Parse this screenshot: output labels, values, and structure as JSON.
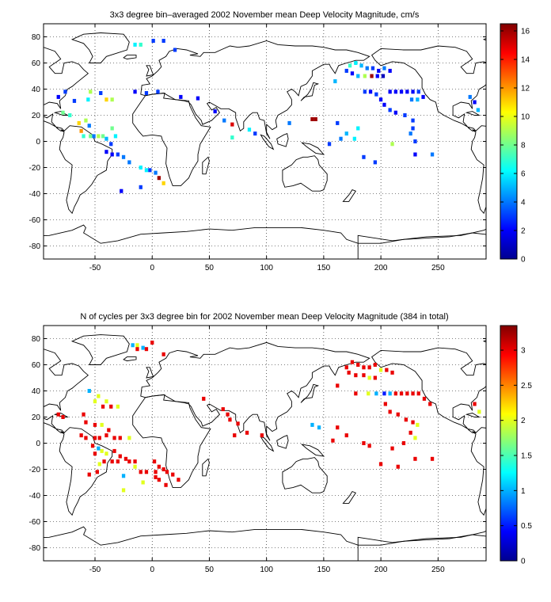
{
  "chart_data": [
    {
      "type": "heatmap",
      "title": "3x3 degree bin–averaged 2002 November mean Deep Velocity Magnitude, cm/s",
      "xlabel": "",
      "ylabel": "",
      "xlim": [
        -95,
        292
      ],
      "ylim": [
        -90,
        90
      ],
      "xticks": [
        -50,
        0,
        50,
        100,
        150,
        200,
        250
      ],
      "yticks": [
        -80,
        -60,
        -40,
        -20,
        0,
        20,
        40,
        60,
        80
      ],
      "grid": true,
      "colorbar": {
        "min": 0,
        "max": 16.5,
        "ticks": [
          0,
          2,
          4,
          6,
          8,
          10,
          12,
          14,
          16
        ]
      },
      "cells": [
        [
          1,
          77,
          3
        ],
        [
          10,
          77,
          3
        ],
        [
          -15,
          74,
          6
        ],
        [
          -10,
          74,
          7
        ],
        [
          20,
          70,
          3
        ],
        [
          -82,
          34,
          2
        ],
        [
          -76,
          38,
          3
        ],
        [
          -68,
          31,
          3
        ],
        [
          -54,
          38,
          9
        ],
        [
          -56,
          32,
          6
        ],
        [
          -45,
          37,
          3
        ],
        [
          -40,
          32,
          11
        ],
        [
          -35,
          32,
          9
        ],
        [
          -15,
          38,
          2
        ],
        [
          -5,
          37,
          3
        ],
        [
          5,
          38,
          3
        ],
        [
          25,
          34,
          2
        ],
        [
          40,
          33,
          2
        ],
        [
          -78,
          22,
          8
        ],
        [
          -72,
          20,
          7
        ],
        [
          -64,
          14,
          11
        ],
        [
          -58,
          16,
          9
        ],
        [
          -55,
          12,
          4
        ],
        [
          -62,
          8,
          12
        ],
        [
          -60,
          4,
          7
        ],
        [
          -54,
          4,
          8
        ],
        [
          -51,
          4,
          4
        ],
        [
          -47,
          4,
          9
        ],
        [
          -43,
          4,
          8
        ],
        [
          -40,
          2,
          5
        ],
        [
          -35,
          10,
          8
        ],
        [
          -32,
          4,
          6
        ],
        [
          -36,
          -2,
          3
        ],
        [
          -40,
          -8,
          2
        ],
        [
          -35,
          -10,
          2
        ],
        [
          -30,
          -10,
          3
        ],
        [
          -25,
          -12,
          4
        ],
        [
          -20,
          -16,
          4
        ],
        [
          -10,
          -20,
          6
        ],
        [
          -5,
          -22,
          6
        ],
        [
          -2,
          -22,
          3
        ],
        [
          3,
          -24,
          4
        ],
        [
          6,
          -28,
          16
        ],
        [
          10,
          -32,
          11
        ],
        [
          -10,
          -35,
          3
        ],
        [
          -27,
          -38,
          2
        ],
        [
          55,
          23,
          2
        ],
        [
          63,
          16,
          4
        ],
        [
          70,
          13,
          15
        ],
        [
          85,
          9,
          6
        ],
        [
          70,
          3,
          7
        ],
        [
          90,
          6,
          3
        ],
        [
          120,
          14,
          4
        ],
        [
          140,
          17,
          16
        ],
        [
          143,
          17,
          16
        ],
        [
          162,
          14,
          3
        ],
        [
          180,
          10,
          6
        ],
        [
          170,
          6,
          5
        ],
        [
          165,
          2,
          4
        ],
        [
          155,
          -2,
          3
        ],
        [
          177,
          2,
          6
        ],
        [
          185,
          -12,
          3
        ],
        [
          195,
          -16,
          3
        ],
        [
          173,
          58,
          7
        ],
        [
          178,
          60,
          6
        ],
        [
          183,
          58,
          5
        ],
        [
          188,
          56,
          4
        ],
        [
          193,
          56,
          3
        ],
        [
          198,
          54,
          2
        ],
        [
          203,
          56,
          4
        ],
        [
          208,
          54,
          2
        ],
        [
          170,
          54,
          3
        ],
        [
          175,
          52,
          2
        ],
        [
          180,
          50,
          5
        ],
        [
          186,
          50,
          9
        ],
        [
          192,
          50,
          16
        ],
        [
          197,
          50,
          2
        ],
        [
          202,
          50,
          1
        ],
        [
          160,
          46,
          5
        ],
        [
          186,
          38,
          3
        ],
        [
          191,
          38,
          2
        ],
        [
          196,
          36,
          3
        ],
        [
          200,
          32,
          2
        ],
        [
          208,
          38,
          2
        ],
        [
          213,
          38,
          2
        ],
        [
          218,
          38,
          2
        ],
        [
          223,
          38,
          2
        ],
        [
          228,
          38,
          2
        ],
        [
          233,
          38,
          3
        ],
        [
          227,
          32,
          4
        ],
        [
          232,
          32,
          5
        ],
        [
          237,
          34,
          2
        ],
        [
          203,
          28,
          2
        ],
        [
          208,
          24,
          3
        ],
        [
          213,
          22,
          2
        ],
        [
          221,
          20,
          3
        ],
        [
          228,
          16,
          3
        ],
        [
          228,
          10,
          3
        ],
        [
          226,
          6,
          4
        ],
        [
          230,
          0,
          3
        ],
        [
          210,
          -2,
          9
        ],
        [
          230,
          -10,
          2
        ],
        [
          245,
          -10,
          4
        ],
        [
          278,
          34,
          4
        ],
        [
          282,
          30,
          2
        ],
        [
          285,
          24,
          5
        ]
      ]
    },
    {
      "type": "heatmap",
      "title": "N of cycles per 3x3 degree bin for 2002 November mean Deep Velocity Magnitude (384 in total)",
      "xlabel": "",
      "ylabel": "",
      "xlim": [
        -95,
        292
      ],
      "ylim": [
        -90,
        90
      ],
      "xticks": [
        -50,
        0,
        50,
        100,
        150,
        200,
        250
      ],
      "yticks": [
        -80,
        -60,
        -40,
        -20,
        0,
        20,
        40,
        60,
        80
      ],
      "grid": true,
      "colorbar": {
        "min": 0,
        "max": 3.35,
        "ticks": [
          0,
          0.5,
          1,
          1.5,
          2,
          2.5,
          3
        ]
      },
      "cells": [
        [
          -17,
          75,
          1
        ],
        [
          -13,
          75,
          2
        ],
        [
          -8,
          73,
          1
        ],
        [
          0,
          77,
          3
        ],
        [
          -13,
          72,
          3
        ],
        [
          -5,
          72,
          3
        ],
        [
          10,
          68,
          3
        ],
        [
          -55,
          40,
          1
        ],
        [
          -47,
          36,
          2
        ],
        [
          -50,
          32,
          2
        ],
        [
          -40,
          32,
          2
        ],
        [
          -36,
          28,
          3
        ],
        [
          -43,
          28,
          3
        ],
        [
          -30,
          28,
          2
        ],
        [
          -82,
          22,
          3
        ],
        [
          -78,
          20,
          3
        ],
        [
          -60,
          22,
          3
        ],
        [
          -58,
          16,
          3
        ],
        [
          -50,
          14,
          3
        ],
        [
          -44,
          14,
          2
        ],
        [
          -38,
          10,
          3
        ],
        [
          -62,
          6,
          3
        ],
        [
          -58,
          4,
          3
        ],
        [
          -50,
          4,
          3
        ],
        [
          -46,
          4,
          3
        ],
        [
          -40,
          6,
          3
        ],
        [
          -33,
          4,
          3
        ],
        [
          -28,
          4,
          3
        ],
        [
          -20,
          4,
          2
        ],
        [
          -52,
          -2,
          3
        ],
        [
          -47,
          -4,
          1
        ],
        [
          -50,
          -8,
          3
        ],
        [
          -44,
          -6,
          2
        ],
        [
          -40,
          -8,
          2
        ],
        [
          -33,
          -6,
          3
        ],
        [
          -28,
          -10,
          3
        ],
        [
          -23,
          -12,
          3
        ],
        [
          -15,
          -18,
          2
        ],
        [
          -10,
          -22,
          3
        ],
        [
          -5,
          -22,
          3
        ],
        [
          3,
          -22,
          3
        ],
        [
          6,
          -28,
          3
        ],
        [
          12,
          -32,
          3
        ],
        [
          -8,
          -30,
          2
        ],
        [
          -25,
          -36,
          2
        ],
        [
          -25,
          -25,
          1
        ],
        [
          -55,
          -24,
          3
        ],
        [
          -48,
          -22,
          3
        ],
        [
          -46,
          -16,
          2
        ],
        [
          -42,
          -14,
          3
        ],
        [
          -35,
          -14,
          3
        ],
        [
          -30,
          -14,
          3
        ],
        [
          -20,
          -14,
          3
        ],
        [
          -15,
          -14,
          3
        ],
        [
          2,
          -14,
          3
        ],
        [
          6,
          -18,
          3
        ],
        [
          10,
          -20,
          3
        ],
        [
          13,
          -22,
          3
        ],
        [
          18,
          -24,
          3
        ],
        [
          23,
          -28,
          3
        ],
        [
          3,
          -26,
          3
        ],
        [
          45,
          34,
          3
        ],
        [
          62,
          26,
          3
        ],
        [
          66,
          22,
          3
        ],
        [
          68,
          18,
          3
        ],
        [
          75,
          15,
          3
        ],
        [
          72,
          6,
          3
        ],
        [
          83,
          8,
          3
        ],
        [
          96,
          6,
          3
        ],
        [
          140,
          14,
          1
        ],
        [
          146,
          12,
          1
        ],
        [
          162,
          12,
          3
        ],
        [
          170,
          6,
          3
        ],
        [
          158,
          2,
          3
        ],
        [
          185,
          0,
          3
        ],
        [
          190,
          -2,
          3
        ],
        [
          200,
          -16,
          3
        ],
        [
          215,
          -18,
          3
        ],
        [
          230,
          -12,
          3
        ],
        [
          245,
          -12,
          3
        ],
        [
          170,
          58,
          3
        ],
        [
          175,
          62,
          3
        ],
        [
          180,
          60,
          3
        ],
        [
          185,
          58,
          3
        ],
        [
          190,
          58,
          3
        ],
        [
          195,
          60,
          3
        ],
        [
          200,
          56,
          2
        ],
        [
          205,
          56,
          3
        ],
        [
          210,
          54,
          3
        ],
        [
          172,
          54,
          3
        ],
        [
          178,
          52,
          3
        ],
        [
          185,
          52,
          3
        ],
        [
          190,
          50,
          2
        ],
        [
          195,
          50,
          3
        ],
        [
          162,
          44,
          3
        ],
        [
          178,
          38,
          3
        ],
        [
          189,
          38,
          2
        ],
        [
          196,
          38,
          1
        ],
        [
          203,
          38,
          0.5
        ],
        [
          208,
          38,
          1
        ],
        [
          213,
          38,
          3
        ],
        [
          218,
          38,
          3
        ],
        [
          223,
          38,
          3
        ],
        [
          228,
          38,
          3
        ],
        [
          233,
          38,
          3
        ],
        [
          238,
          34,
          3
        ],
        [
          243,
          30,
          3
        ],
        [
          204,
          30,
          3
        ],
        [
          208,
          24,
          3
        ],
        [
          215,
          22,
          3
        ],
        [
          222,
          18,
          3
        ],
        [
          228,
          16,
          3
        ],
        [
          232,
          14,
          2
        ],
        [
          226,
          8,
          3
        ],
        [
          230,
          4,
          2
        ],
        [
          220,
          0,
          3
        ],
        [
          210,
          -4,
          3
        ],
        [
          282,
          30,
          3
        ],
        [
          286,
          24,
          2
        ]
      ]
    }
  ]
}
